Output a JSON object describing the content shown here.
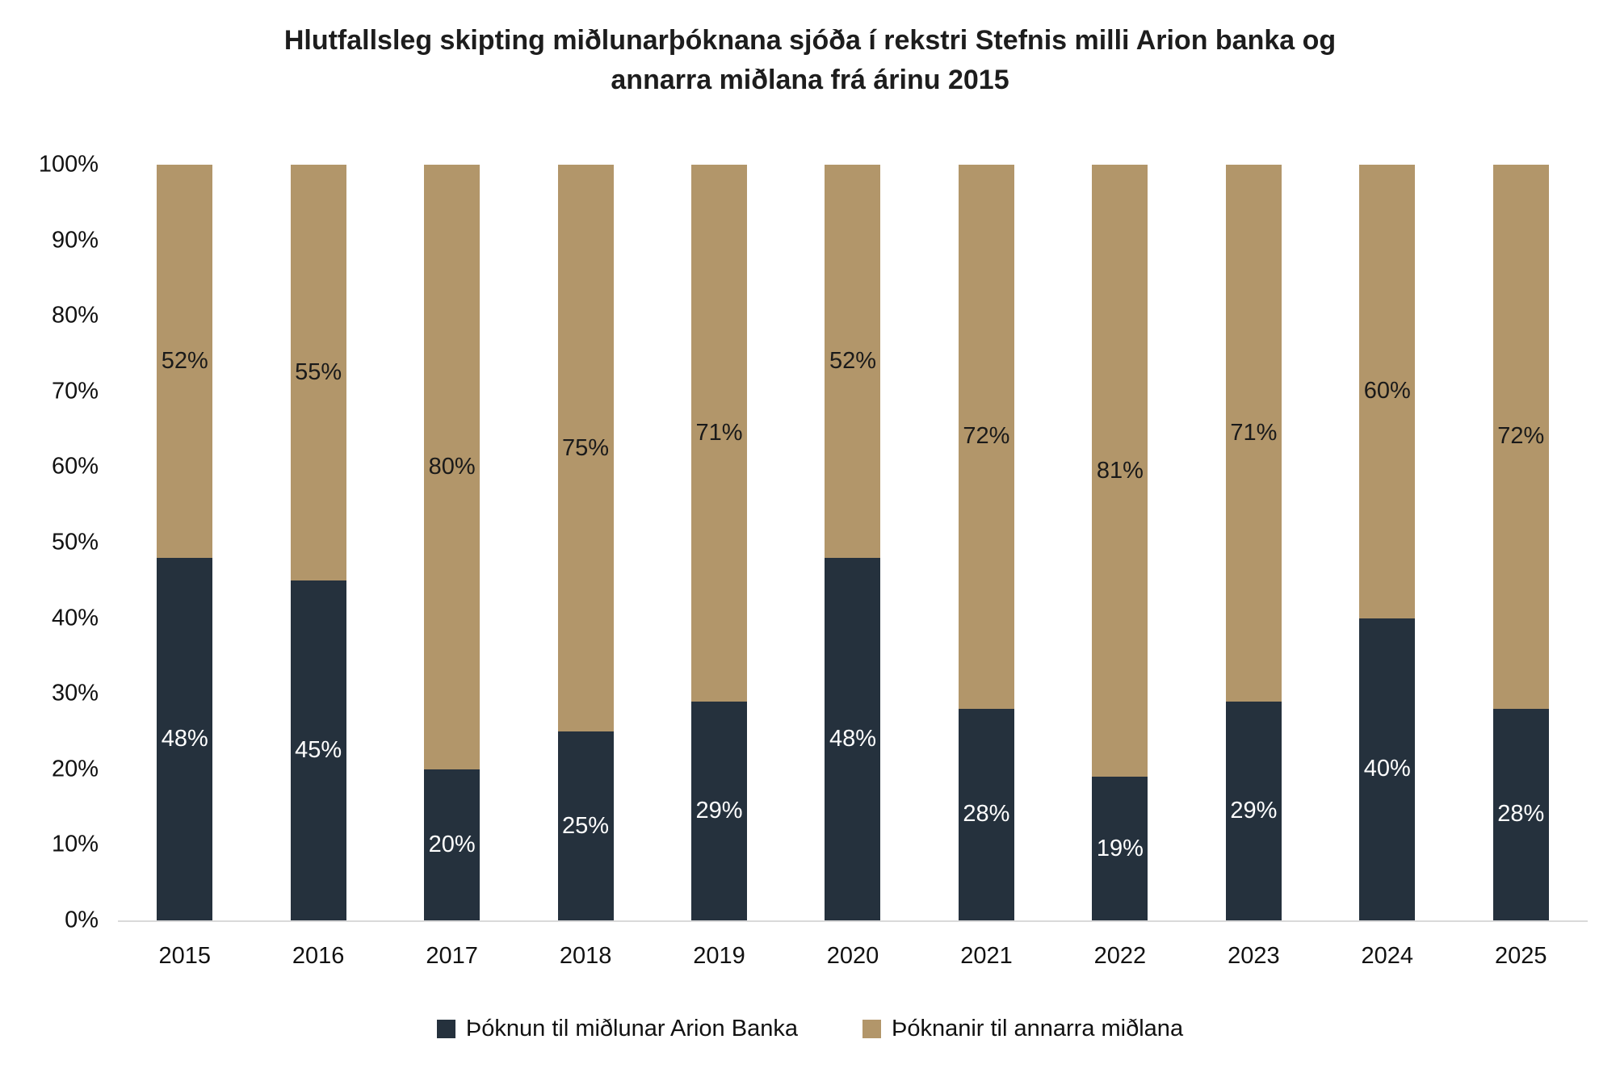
{
  "title": {
    "line1": "Hlutfallsleg skipting miðlunarþóknana sjóða í rekstri Stefnis milli Arion banka og",
    "line2": "annarra miðlana frá árinu 2015"
  },
  "colors": {
    "arion": "#25313D",
    "other": "#B2966A",
    "label_on_arion": "#FFFFFF",
    "label_on_other": "#1A1A1A",
    "axis_line": "#D9D9D9",
    "text": "#111111"
  },
  "chart_data": {
    "type": "bar",
    "stacked": true,
    "percent_stacked": true,
    "title": "Hlutfallsleg skipting miðlunarþóknana sjóða í rekstri Stefnis milli Arion banka og annarra miðlana frá árinu 2015",
    "categories": [
      "2015",
      "2016",
      "2017",
      "2018",
      "2019",
      "2020",
      "2021",
      "2022",
      "2023",
      "2024",
      "2025"
    ],
    "series": [
      {
        "name": "Þóknun til miðlunar Arion Banka",
        "color_key": "arion",
        "values": [
          48,
          45,
          20,
          25,
          29,
          48,
          28,
          19,
          29,
          40,
          28
        ]
      },
      {
        "name": "Þóknanir til annarra miðlana",
        "color_key": "other",
        "values": [
          52,
          55,
          80,
          75,
          71,
          52,
          72,
          81,
          71,
          60,
          72
        ]
      }
    ],
    "y_axis": {
      "min": 0,
      "max": 100,
      "ticks": [
        "100%",
        "90%",
        "80%",
        "70%",
        "60%",
        "50%",
        "40%",
        "30%",
        "20%",
        "10%",
        "0%"
      ]
    },
    "xlabel": "",
    "ylabel": "",
    "grid": false,
    "legend_position": "bottom",
    "value_labels": "centered-in-segment"
  }
}
